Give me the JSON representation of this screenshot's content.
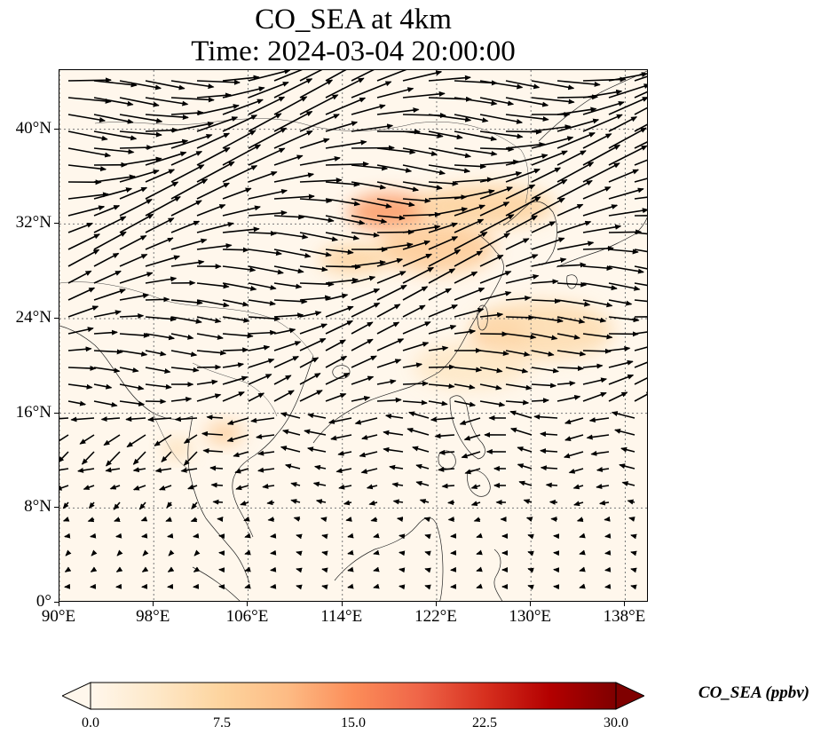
{
  "title": {
    "line1": "CO_SEA at 4km",
    "line2": "Time: 2024-03-04 20:00:00"
  },
  "map": {
    "lon_range": [
      90,
      140
    ],
    "lat_range": [
      0,
      45
    ],
    "lat_ticks": [
      {
        "value": 0,
        "label": "0°"
      },
      {
        "value": 8,
        "label": "8°N"
      },
      {
        "value": 16,
        "label": "16°N"
      },
      {
        "value": 24,
        "label": "24°N"
      },
      {
        "value": 32,
        "label": "32°N"
      },
      {
        "value": 40,
        "label": "40°N"
      }
    ],
    "lon_ticks": [
      {
        "value": 90,
        "label": "90°E"
      },
      {
        "value": 98,
        "label": "98°E"
      },
      {
        "value": 106,
        "label": "106°E"
      },
      {
        "value": 114,
        "label": "114°E"
      },
      {
        "value": 122,
        "label": "122°E"
      },
      {
        "value": 130,
        "label": "130°E"
      },
      {
        "value": 138,
        "label": "138°E"
      }
    ],
    "gridlines": "dotted",
    "plumes": [
      {
        "lon": 118,
        "lat": 33,
        "rx": 3.5,
        "ry": 1.6,
        "level": 14
      },
      {
        "lon": 122,
        "lat": 30,
        "rx": 5,
        "ry": 2.2,
        "level": 9
      },
      {
        "lon": 126,
        "lat": 33.5,
        "rx": 6,
        "ry": 1.8,
        "level": 8
      },
      {
        "lon": 115,
        "lat": 29,
        "rx": 3,
        "ry": 1.2,
        "level": 8
      },
      {
        "lon": 127.5,
        "lat": 22.5,
        "rx": 2.2,
        "ry": 1.5,
        "level": 12
      },
      {
        "lon": 131,
        "lat": 23,
        "rx": 6,
        "ry": 2.5,
        "level": 6
      },
      {
        "lon": 104,
        "lat": 14.3,
        "rx": 1.6,
        "ry": 0.9,
        "level": 9
      },
      {
        "lon": 100,
        "lat": 13,
        "rx": 1.2,
        "ry": 0.8,
        "level": 6
      },
      {
        "lon": 125,
        "lat": 20,
        "rx": 5,
        "ry": 2,
        "level": 4
      }
    ]
  },
  "colorbar": {
    "label": "CO_SEA (ppbv)",
    "ticks": [
      "0.0",
      "7.5",
      "15.0",
      "22.5",
      "30.0"
    ],
    "min": 0,
    "max": 30,
    "colors": [
      "#fff7ec",
      "#fee8c8",
      "#fdd49e",
      "#fdbb84",
      "#fc8d59",
      "#ef6548",
      "#d7301f",
      "#b30000",
      "#7f0000"
    ],
    "extend": "both"
  }
}
